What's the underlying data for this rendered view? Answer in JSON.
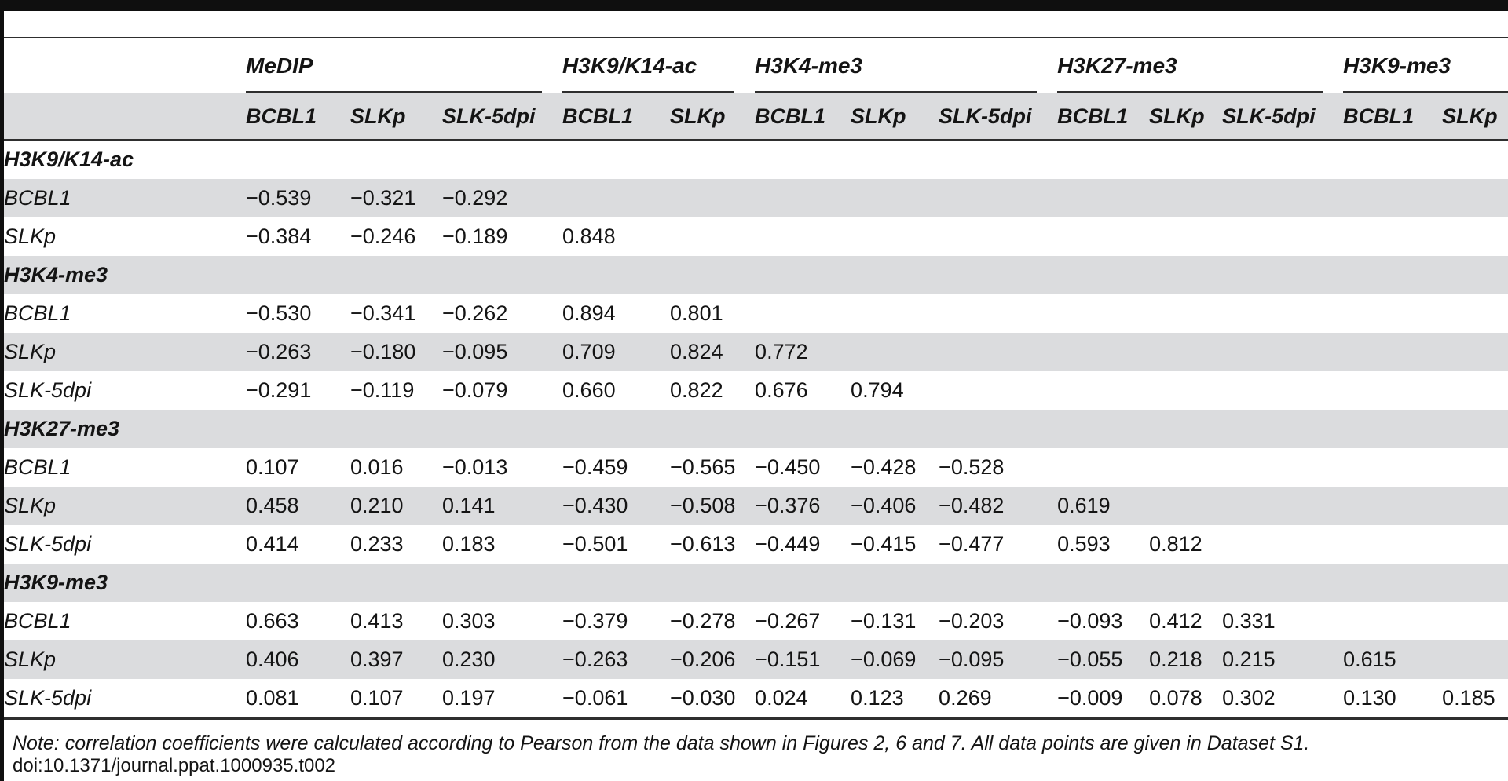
{
  "colors": {
    "stripe": "#dbdcde",
    "rule": "#2e2e2e",
    "bar": "#0f0f0f"
  },
  "footer": {
    "note": "Note: correlation coefficients were calculated according to Pearson from the data shown in Figures 2, 6 and 7. All data points are given in Dataset S1.",
    "doi": "doi:10.1371/journal.ppat.1000935.t002"
  },
  "chart_data": {
    "type": "table",
    "column_groups": [
      {
        "label": "MeDIP",
        "columns": [
          "BCBL1",
          "SLKp",
          "SLK-5dpi"
        ]
      },
      {
        "label": "H3K9/K14-ac",
        "columns": [
          "BCBL1",
          "SLKp"
        ]
      },
      {
        "label": "H3K4-me3",
        "columns": [
          "BCBL1",
          "SLKp",
          "SLK-5dpi"
        ]
      },
      {
        "label": "H3K27-me3",
        "columns": [
          "BCBL1",
          "SLKp",
          "SLK-5dpi"
        ]
      },
      {
        "label": "H3K9-me3",
        "columns": [
          "BCBL1",
          "SLKp"
        ]
      }
    ],
    "row_groups": [
      {
        "label": "H3K9/K14-ac",
        "rows": [
          {
            "label": "BCBL1",
            "values": [
              "−0.539",
              "−0.321",
              "−0.292",
              "",
              "",
              "",
              "",
              "",
              "",
              "",
              "",
              "",
              ""
            ]
          },
          {
            "label": "SLKp",
            "values": [
              "−0.384",
              "−0.246",
              "−0.189",
              "0.848",
              "",
              "",
              "",
              "",
              "",
              "",
              "",
              "",
              ""
            ]
          }
        ]
      },
      {
        "label": "H3K4-me3",
        "rows": [
          {
            "label": "BCBL1",
            "values": [
              "−0.530",
              "−0.341",
              "−0.262",
              "0.894",
              "0.801",
              "",
              "",
              "",
              "",
              "",
              "",
              "",
              ""
            ]
          },
          {
            "label": "SLKp",
            "values": [
              "−0.263",
              "−0.180",
              "−0.095",
              "0.709",
              "0.824",
              "0.772",
              "",
              "",
              "",
              "",
              "",
              "",
              ""
            ]
          },
          {
            "label": "SLK-5dpi",
            "values": [
              "−0.291",
              "−0.119",
              "−0.079",
              "0.660",
              "0.822",
              "0.676",
              "0.794",
              "",
              "",
              "",
              "",
              "",
              ""
            ]
          }
        ]
      },
      {
        "label": "H3K27-me3",
        "rows": [
          {
            "label": "BCBL1",
            "values": [
              "0.107",
              "0.016",
              "−0.013",
              "−0.459",
              "−0.565",
              "−0.450",
              "−0.428",
              "−0.528",
              "",
              "",
              "",
              "",
              ""
            ]
          },
          {
            "label": "SLKp",
            "values": [
              "0.458",
              "0.210",
              "0.141",
              "−0.430",
              "−0.508",
              "−0.376",
              "−0.406",
              "−0.482",
              "0.619",
              "",
              "",
              "",
              ""
            ]
          },
          {
            "label": "SLK-5dpi",
            "values": [
              "0.414",
              "0.233",
              "0.183",
              "−0.501",
              "−0.613",
              "−0.449",
              "−0.415",
              "−0.477",
              "0.593",
              "0.812",
              "",
              "",
              ""
            ]
          }
        ]
      },
      {
        "label": "H3K9-me3",
        "rows": [
          {
            "label": "BCBL1",
            "values": [
              "0.663",
              "0.413",
              "0.303",
              "−0.379",
              "−0.278",
              "−0.267",
              "−0.131",
              "−0.203",
              "−0.093",
              "0.412",
              "0.331",
              "",
              ""
            ]
          },
          {
            "label": "SLKp",
            "values": [
              "0.406",
              "0.397",
              "0.230",
              "−0.263",
              "−0.206",
              "−0.151",
              "−0.069",
              "−0.095",
              "−0.055",
              "0.218",
              "0.215",
              "0.615",
              ""
            ]
          },
          {
            "label": "SLK-5dpi",
            "values": [
              "0.081",
              "0.107",
              "0.197",
              "−0.061",
              "−0.030",
              "0.024",
              "0.123",
              "0.269",
              "−0.009",
              "0.078",
              "0.302",
              "0.130",
              "0.185"
            ]
          }
        ]
      }
    ]
  }
}
